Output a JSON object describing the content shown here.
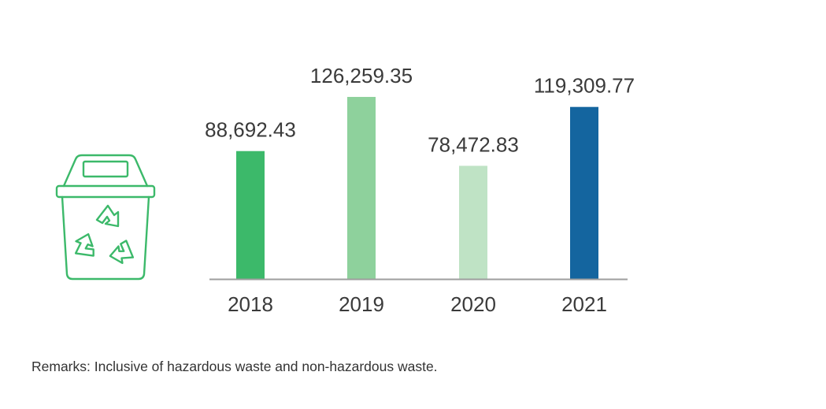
{
  "chart_data": {
    "type": "bar",
    "categories": [
      "2018",
      "2019",
      "2020",
      "2021"
    ],
    "values": [
      88692.43,
      126259.35,
      78472.83,
      119309.77
    ],
    "value_labels": [
      "88,692.43",
      "126,259.35",
      "78,472.83",
      "119,309.77"
    ],
    "bar_colors": [
      "#3cb96a",
      "#8ed19c",
      "#bfe3c5",
      "#14659f"
    ],
    "ylim": [
      0,
      141000
    ],
    "grid": false,
    "title": "",
    "xlabel": "",
    "ylabel": ""
  },
  "remarks": "Remarks: Inclusive of hazardous waste and non-hazardous waste.",
  "icon": {
    "name": "recycle-bin-icon",
    "color": "#3cb96a"
  },
  "axis_color": "#9e9e9e"
}
